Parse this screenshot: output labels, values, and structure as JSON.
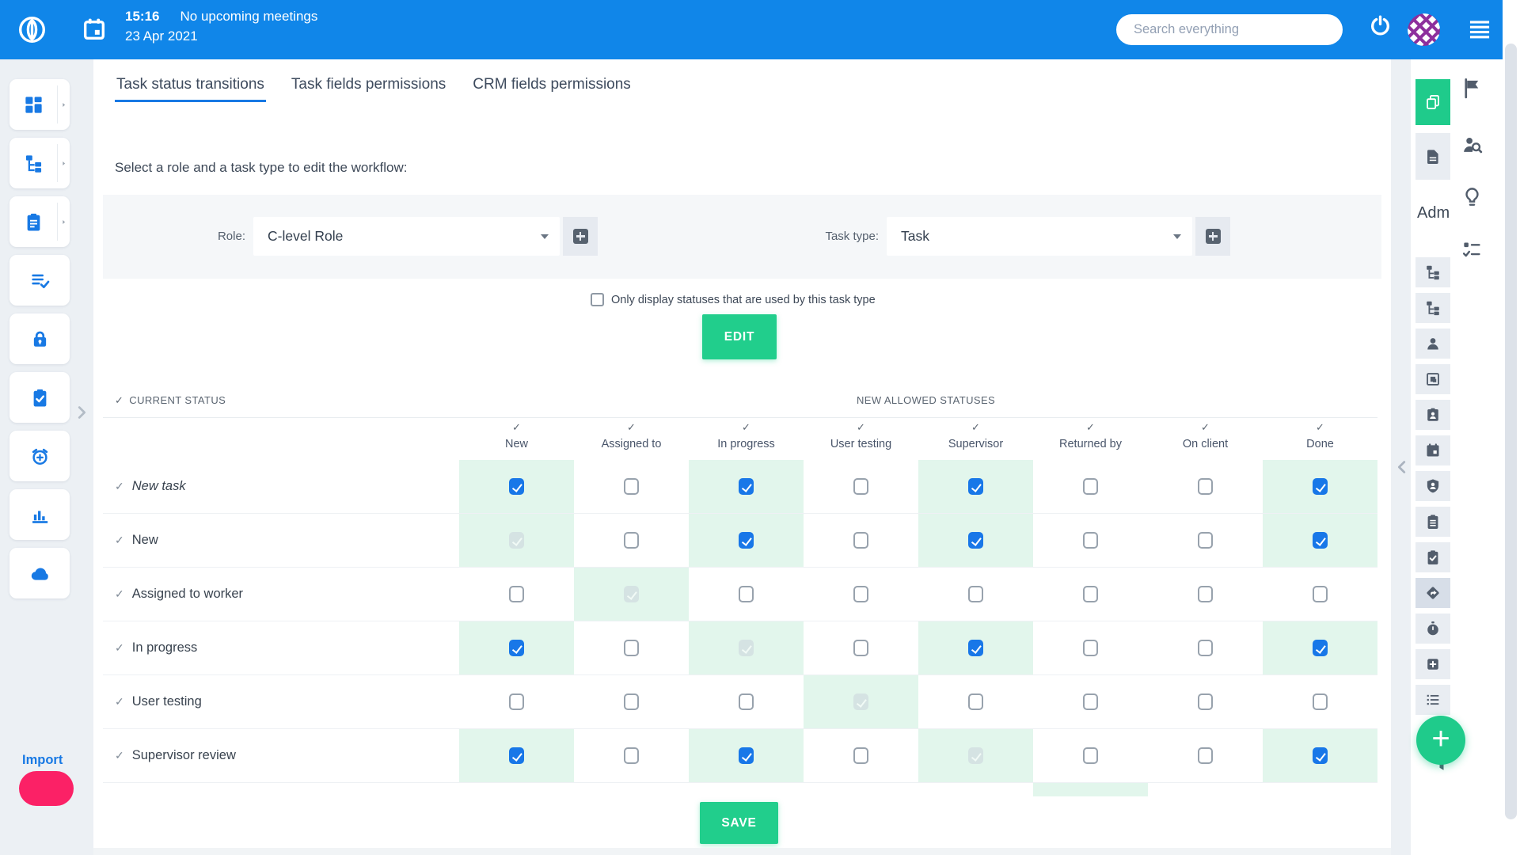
{
  "topbar": {
    "time": "15:16",
    "meetings_text": "No upcoming meetings",
    "date": "23 Apr 2021",
    "search_placeholder": "Search everything"
  },
  "tabs": [
    {
      "id": "task-status-transitions",
      "label": "Task status transitions",
      "active": true
    },
    {
      "id": "task-fields-permissions",
      "label": "Task fields permissions",
      "active": false
    },
    {
      "id": "crm-fields-permissions",
      "label": "CRM fields permissions",
      "active": false
    }
  ],
  "subtitle": "Select a role and a task type to edit the workflow:",
  "selectors": {
    "role_label": "Role:",
    "role_value": "C-level Role",
    "task_type_label": "Task type:",
    "task_type_value": "Task"
  },
  "filter_checkbox": {
    "label": "Only display statuses that are used by this task type",
    "checked": false
  },
  "buttons": {
    "edit": "EDIT",
    "save": "SAVE"
  },
  "table": {
    "current_status_header": "CURRENT STATUS",
    "new_allowed_header": "NEW ALLOWED STATUSES",
    "columns": [
      "New",
      "Assigned to",
      "In progress",
      "User testing",
      "Supervisor",
      "Returned by",
      "On client",
      "Done"
    ],
    "rows": [
      {
        "label": "New task",
        "italic": true,
        "states": [
          "checked",
          "unchecked",
          "checked",
          "unchecked",
          "checked",
          "unchecked",
          "unchecked",
          "checked"
        ]
      },
      {
        "label": "New",
        "italic": false,
        "states": [
          "disabled-checked",
          "unchecked",
          "checked",
          "unchecked",
          "checked",
          "unchecked",
          "unchecked",
          "checked"
        ]
      },
      {
        "label": "Assigned to worker",
        "italic": false,
        "states": [
          "unchecked",
          "disabled-checked",
          "unchecked",
          "unchecked",
          "unchecked",
          "unchecked",
          "unchecked",
          "unchecked"
        ]
      },
      {
        "label": "In progress",
        "italic": false,
        "states": [
          "checked",
          "unchecked",
          "disabled-checked",
          "unchecked",
          "checked",
          "unchecked",
          "unchecked",
          "checked"
        ]
      },
      {
        "label": "User testing",
        "italic": false,
        "states": [
          "unchecked",
          "unchecked",
          "unchecked",
          "disabled-checked",
          "unchecked",
          "unchecked",
          "unchecked",
          "unchecked"
        ]
      },
      {
        "label": "Supervisor review",
        "italic": false,
        "states": [
          "checked",
          "unchecked",
          "checked",
          "unchecked",
          "disabled-checked",
          "unchecked",
          "unchecked",
          "checked"
        ]
      }
    ],
    "partial_next_row": {
      "mint_column_index": 5
    }
  },
  "left_sidebar": {
    "items": [
      {
        "id": "dashboards",
        "icon": "dashboard-icon",
        "has_arrow": true
      },
      {
        "id": "projects",
        "icon": "hierarchy-icon",
        "has_arrow": true
      },
      {
        "id": "tickets",
        "icon": "clipboard-icon",
        "has_arrow": true
      },
      {
        "id": "tasks",
        "icon": "list-check-icon",
        "has_arrow": false
      },
      {
        "id": "security",
        "icon": "lock-icon",
        "has_arrow": false
      },
      {
        "id": "approvals",
        "icon": "clipboard-check-icon",
        "has_arrow": false
      },
      {
        "id": "timesheets",
        "icon": "timer-add-icon",
        "has_arrow": false
      },
      {
        "id": "analytics",
        "icon": "bar-chart-icon",
        "has_arrow": false
      },
      {
        "id": "cloud",
        "icon": "cloud-icon",
        "has_arrow": false
      }
    ],
    "import_label": "Import"
  },
  "right_sidebar": {
    "admin_label": "Adm",
    "top_buttons": [
      {
        "id": "boards",
        "icon": "copy-pages-icon",
        "active": true
      },
      {
        "id": "documents",
        "icon": "document-icon",
        "active": false
      }
    ],
    "admin_buttons": [
      {
        "id": "structure-1",
        "icon": "hierarchy-icon",
        "active": false
      },
      {
        "id": "structure-2",
        "icon": "hierarchy-icon",
        "active": false
      },
      {
        "id": "users",
        "icon": "person-icon",
        "active": false
      },
      {
        "id": "groups",
        "icon": "group-frame-icon",
        "active": false
      },
      {
        "id": "customers",
        "icon": "id-badge-icon",
        "active": false
      },
      {
        "id": "calendar",
        "icon": "calendar-solid-icon",
        "active": false
      },
      {
        "id": "roles",
        "icon": "shield-person-icon",
        "active": false
      },
      {
        "id": "forms",
        "icon": "clipboard-lines-icon",
        "active": false
      },
      {
        "id": "tasks-admin",
        "icon": "clipboard-check-icon",
        "active": false
      },
      {
        "id": "workflows",
        "icon": "directions-icon",
        "active": true
      },
      {
        "id": "timers",
        "icon": "stopwatch-icon",
        "active": false
      },
      {
        "id": "add-items",
        "icon": "plus-square-icon",
        "active": false
      },
      {
        "id": "lists",
        "icon": "list-bullets-icon",
        "active": false
      }
    ],
    "outer_icons": [
      {
        "id": "flags",
        "icon": "flag-icon"
      },
      {
        "id": "customer-search",
        "icon": "person-search-icon"
      },
      {
        "id": "ideas",
        "icon": "lightbulb-icon"
      },
      {
        "id": "checklists",
        "icon": "checklist-icon"
      }
    ],
    "fab_label": "+"
  },
  "colors": {
    "topbar_blue": "#1086e9",
    "accent_blue": "#1879e4",
    "checkbox_blue": "#1877e8",
    "green": "#21ce8c",
    "fab_green": "#1fcb8b",
    "mint": "#e2f6ec",
    "pink": "#fb2166",
    "page_bg": "#ecf0f4"
  }
}
